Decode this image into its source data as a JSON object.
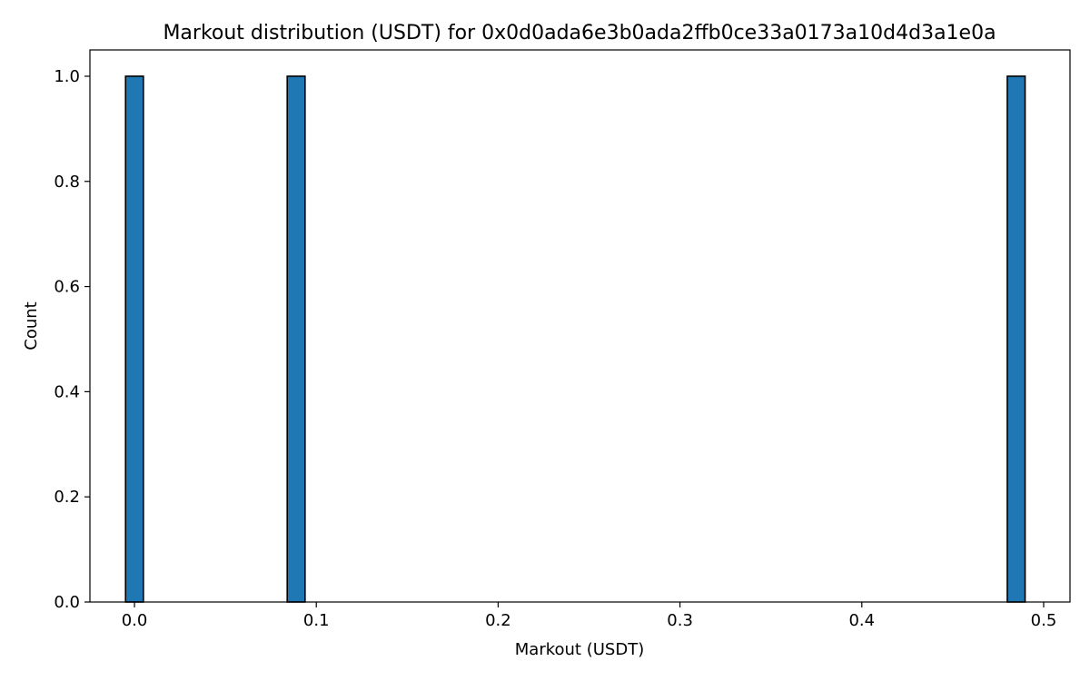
{
  "chart_data": {
    "type": "bar",
    "title": "Markout distribution (USDT) for 0x0d0ada6e3b0ada2ffb0ce33a0173a10d4d3a1e0a",
    "xlabel": "Markout (USDT)",
    "ylabel": "Count",
    "xlim": [
      -0.0245,
      0.5145
    ],
    "ylim": [
      0,
      1.05
    ],
    "xticks": [
      0.0,
      0.1,
      0.2,
      0.3,
      0.4,
      0.5
    ],
    "xtick_labels": [
      "0.0",
      "0.1",
      "0.2",
      "0.3",
      "0.4",
      "0.5"
    ],
    "yticks": [
      0.0,
      0.2,
      0.4,
      0.6,
      0.8,
      1.0
    ],
    "ytick_labels": [
      "0.0",
      "0.2",
      "0.4",
      "0.6",
      "0.8",
      "1.0"
    ],
    "grid": false,
    "bar_color": "#1f77b4",
    "edge_color": "#000000",
    "bins": [
      {
        "x0": -0.0049,
        "x1": 0.0049,
        "count": 1
      },
      {
        "x0": 0.084,
        "x1": 0.0938,
        "count": 1
      },
      {
        "x0": 0.48,
        "x1": 0.4898,
        "count": 1
      }
    ]
  }
}
